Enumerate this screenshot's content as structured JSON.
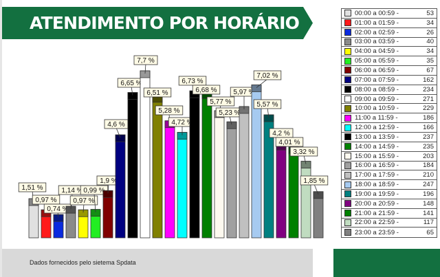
{
  "header": {
    "title": "ATENDIMENTO POR HORÁRIO"
  },
  "footer": {
    "source_text": "Dados fornecidos pelo sietema Spdata"
  },
  "colors": {
    "brand_green": "#137040",
    "footer_gray": "#d9d9d9"
  },
  "chart_data": {
    "type": "bar",
    "title": "",
    "xlabel": "",
    "ylabel": "",
    "grid": false,
    "legend_placement": "right",
    "categories": [
      "00:00 a 00:59 -",
      "01:00 a 01:59 -",
      "02:00 a 02:59 -",
      "03:00 a 03:59 -",
      "04:00 a 04:59 -",
      "05:00 a 05:59 -",
      "06:00 a 06:59 -",
      "07:00 a 07:59 -",
      "08:00 a 08:59 -",
      "09:00 a 09:59 -",
      "10:00 a 10:59 -",
      "11:00 a 11:59 -",
      "12:00 a 12:59 -",
      "13:00 a 13:59 -",
      "14:00 a 14:59 -",
      "15:00 a 15:59 -",
      "16:00 a 16:59 -",
      "17:00 a 17:59 -",
      "18:00 a 18:59 -",
      "19:00 a 19:59 -",
      "20:00 a 20:59 -",
      "21:00 a 21:59 -",
      "22:00 a 22:59 -",
      "23:00 a 23:59 -"
    ],
    "counts": [
      53,
      34,
      26,
      40,
      34,
      35,
      67,
      162,
      234,
      271,
      229,
      186,
      166,
      237,
      235,
      203,
      184,
      210,
      247,
      196,
      148,
      141,
      117,
      65
    ],
    "percent_labels": [
      "1,51 %",
      "0,97 %",
      "0,74 %",
      "1,14 %",
      "0,97 %",
      "0,99 %",
      "1,9 %",
      "4,6 %",
      "6,65 %",
      "7,7 %",
      "6,51 %",
      "5,28 %",
      "4,72 %",
      "6,73 %",
      "6,68 %",
      "5,77 %",
      "5,23 %",
      "5,97 %",
      "7,02 %",
      "5,57 %",
      "4,2 %",
      "4,01 %",
      "3,32 %",
      "1,85 %"
    ],
    "percent_values": [
      1.51,
      0.97,
      0.74,
      1.14,
      0.97,
      0.99,
      1.9,
      4.6,
      6.65,
      7.7,
      6.51,
      5.28,
      4.72,
      6.73,
      6.68,
      5.77,
      5.23,
      5.97,
      7.02,
      5.57,
      4.2,
      4.01,
      3.32,
      1.85
    ],
    "bar_colors": [
      "#e0e0e0",
      "#ff1a1a",
      "#0a2adf",
      "#8a8a8a",
      "#ffff00",
      "#22ee22",
      "#800000",
      "#000080",
      "#000000",
      "#ffffff",
      "#808000",
      "#ff00ff",
      "#00ffff",
      "#000000",
      "#008000",
      "#fdf9ef",
      "#a0a0a0",
      "#c0c0c0",
      "#a6caf0",
      "#008080",
      "#800080",
      "#008000",
      "#c0dcc0",
      "#808080"
    ]
  }
}
